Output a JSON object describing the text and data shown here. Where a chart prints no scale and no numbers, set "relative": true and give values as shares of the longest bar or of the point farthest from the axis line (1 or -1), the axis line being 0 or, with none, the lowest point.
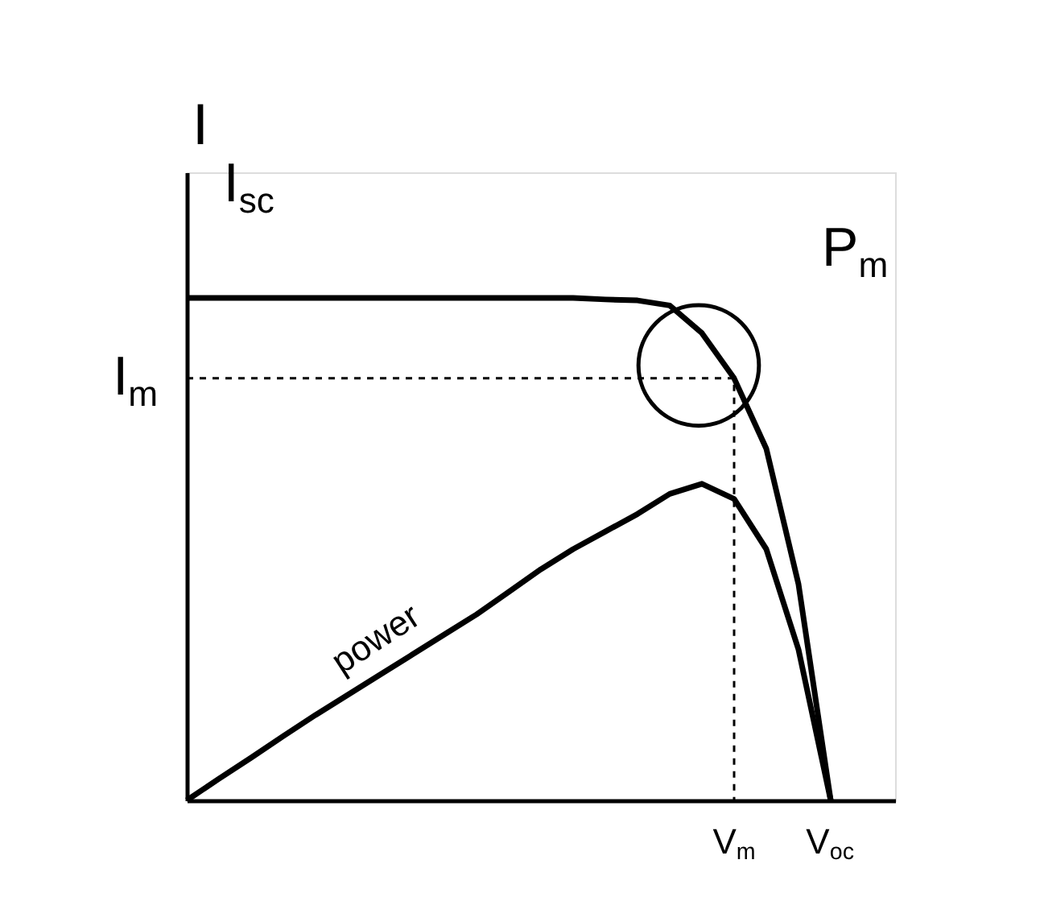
{
  "chart_data": {
    "type": "line",
    "relative": true,
    "ylabel": "I",
    "categories": [
      null,
      null,
      null,
      null,
      null,
      null,
      null,
      null,
      null,
      null,
      null,
      null,
      null,
      null,
      null,
      null,
      null,
      null,
      null,
      null,
      null
    ],
    "series": [
      {
        "color": "#000000",
        "values": [
          1,
          1,
          1,
          1,
          1,
          1,
          1,
          1,
          1,
          1,
          1,
          1,
          1,
          0.997,
          0.995,
          0.985,
          0.93,
          0.84,
          0.7,
          0.43,
          0
        ]
      },
      {
        "color": "#000000",
        "values": [
          0,
          0.043,
          0.085,
          0.128,
          0.17,
          0.21,
          0.25,
          0.29,
          0.33,
          0.37,
          0.415,
          0.46,
          0.5,
          0.535,
          0.57,
          0.61,
          0.63,
          0.6,
          0.5,
          0.3,
          0
        ]
      }
    ],
    "annotations": [
      "I$_{sc}$",
      "I$_{m}$",
      "P$_{m}$",
      "power",
      "V$_{m}$",
      "V$_{oc}$"
    ],
    "grid": false,
    "marker": "none",
    "line_style": "solid"
  }
}
